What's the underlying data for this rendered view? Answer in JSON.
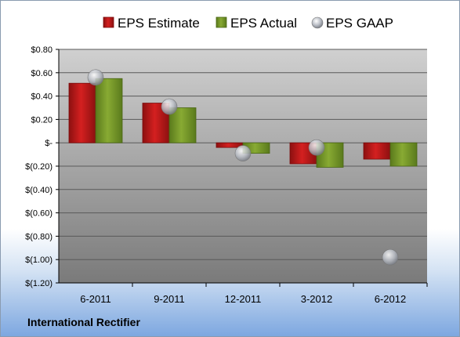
{
  "company": "International Rectifier",
  "colors": {
    "estimate": "#d42020",
    "actual": "#88aa33",
    "gaap": "#b8bcc4"
  },
  "chart_data": {
    "type": "bar",
    "categories": [
      "6-2011",
      "9-2011",
      "12-2011",
      "3-2012",
      "6-2012"
    ],
    "series": [
      {
        "name": "EPS Estimate",
        "marker": "bar",
        "values": [
          0.51,
          0.34,
          -0.04,
          -0.18,
          -0.14
        ]
      },
      {
        "name": "EPS Actual",
        "marker": "bar",
        "values": [
          0.55,
          0.3,
          -0.09,
          -0.21,
          -0.2
        ]
      },
      {
        "name": "EPS GAAP",
        "marker": "point",
        "values": [
          0.56,
          0.31,
          -0.09,
          -0.04,
          -0.98
        ]
      }
    ],
    "yticks": [
      0.8,
      0.6,
      0.4,
      0.2,
      0,
      -0.2,
      -0.4,
      -0.6,
      -0.8,
      -1.0,
      -1.2
    ],
    "ytick_labels": [
      "$0.80",
      "$0.60",
      "$0.40",
      "$0.20",
      "$-",
      "$(0.20)",
      "$(0.40)",
      "$(0.60)",
      "$(0.80)",
      "$(1.00)",
      "$(1.20)"
    ],
    "ylim": [
      -1.2,
      0.8
    ],
    "grid": true,
    "legend_position": "top",
    "xlabel": "",
    "ylabel": ""
  }
}
